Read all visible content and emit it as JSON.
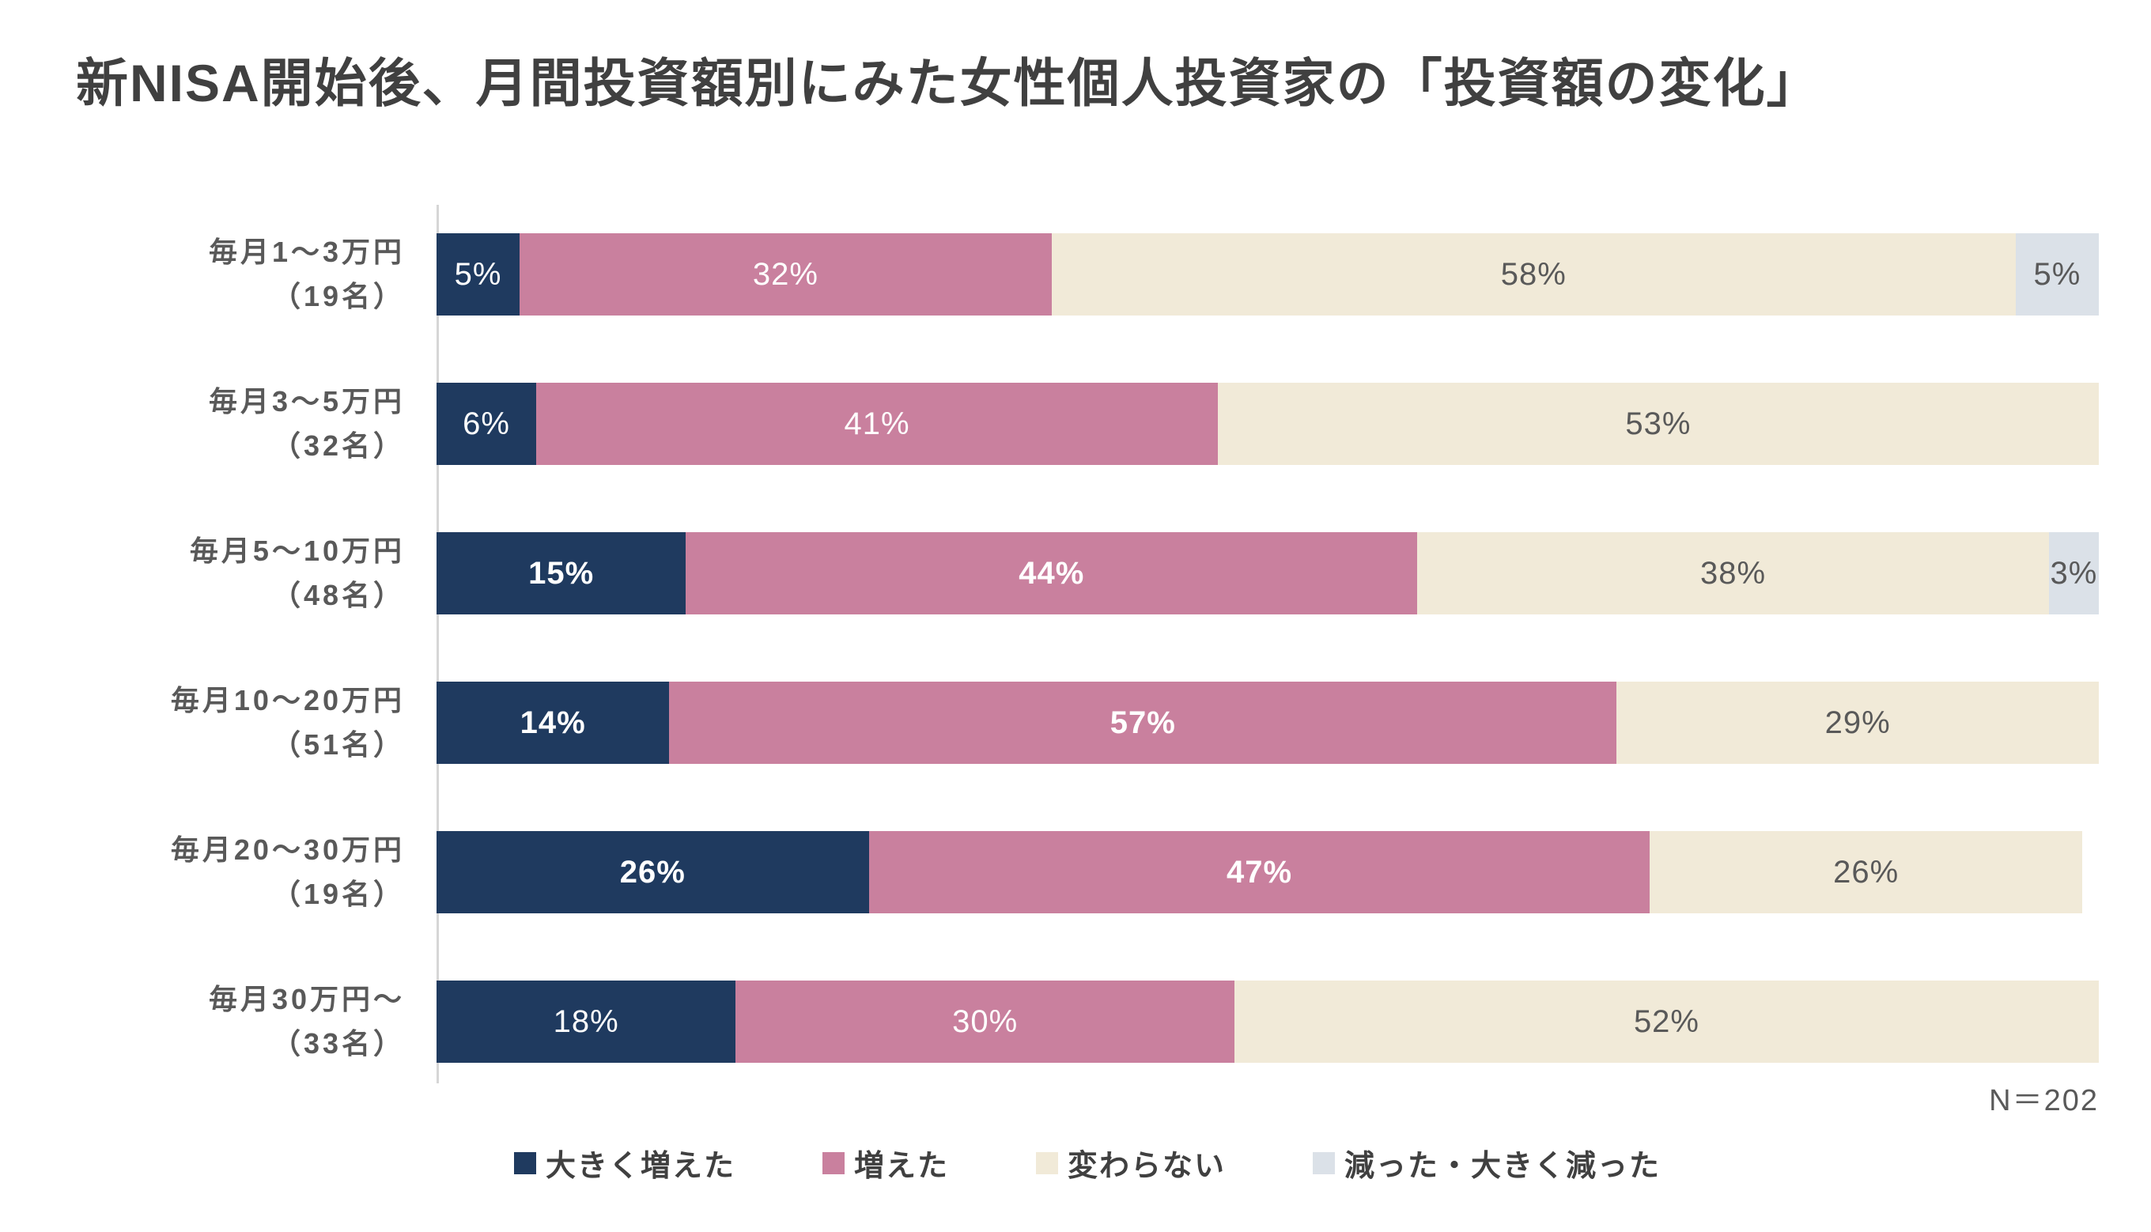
{
  "chart_data": {
    "type": "bar",
    "orientation": "horizontal",
    "stacked": true,
    "unit": "%",
    "title": "新NISA開始後、月間投資額別にみた女性個人投資家の「投資額の変化」",
    "categories": [
      "毎月1～3万円（19名）",
      "毎月3～5万円（32名）",
      "毎月5～10万円（48名）",
      "毎月10～20万円（51名）",
      "毎月20～30万円（19名）",
      "毎月30万円～（33名）"
    ],
    "category_lines": [
      [
        "毎月1～3万円",
        "（19名）"
      ],
      [
        "毎月3～5万円",
        "（32名）"
      ],
      [
        "毎月5～10万円",
        "（48名）"
      ],
      [
        "毎月10～20万円",
        "（51名）"
      ],
      [
        "毎月20～30万円",
        "（19名）"
      ],
      [
        "毎月30万円～",
        "（33名）"
      ]
    ],
    "series": [
      {
        "name": "大きく増えた",
        "color": "#1F3A5F",
        "text_color": "#FFFFFF",
        "values": [
          5,
          6,
          15,
          14,
          26,
          18
        ]
      },
      {
        "name": "増えた",
        "color": "#C9809E",
        "text_color": "#FFFFFF",
        "values": [
          32,
          41,
          44,
          57,
          47,
          30
        ]
      },
      {
        "name": "変わらない",
        "color": "#F1EAD8",
        "text_color": "#595959",
        "values": [
          58,
          53,
          38,
          29,
          26,
          52
        ]
      },
      {
        "name": "減った・大きく減った",
        "color": "#DBE1E8",
        "text_color": "#595959",
        "values": [
          5,
          0,
          3,
          0,
          0,
          0
        ]
      }
    ],
    "bold_label_rows": [
      2,
      3,
      4
    ],
    "xlim": [
      0,
      100
    ],
    "grid": false,
    "legend_position": "bottom",
    "annotation": "N＝202"
  }
}
